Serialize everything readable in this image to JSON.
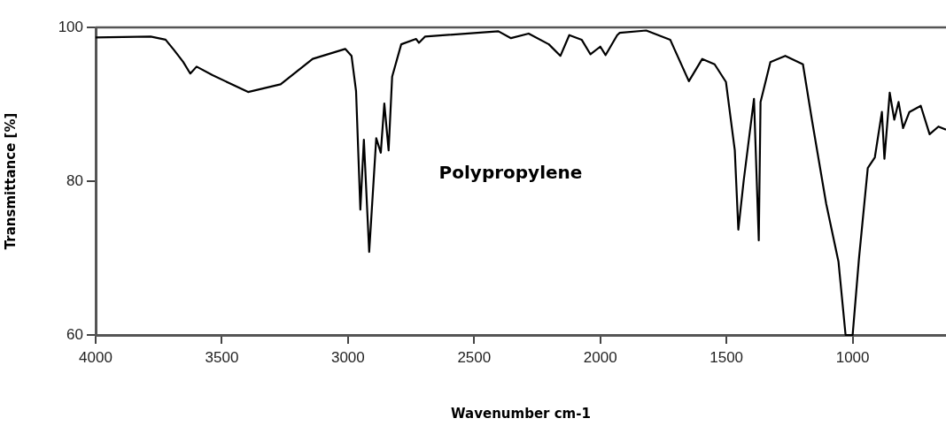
{
  "chart_data": {
    "type": "line",
    "xlabel": "Wavenumber cm-1",
    "ylabel": "Transmittance [%]",
    "annotations": [
      "Polypropylene"
    ],
    "xlim": [
      4000,
      630
    ],
    "xticks": [
      4000,
      3500,
      3000,
      2500,
      2000,
      1500,
      1000
    ],
    "ylim": [
      60,
      100
    ],
    "yticks": [
      60,
      80,
      100
    ],
    "grid": false,
    "legend": false,
    "marker": "none",
    "line_style": "solid",
    "ref_lines": [
      {
        "axis": "y",
        "value": 100,
        "color": "#555555"
      }
    ],
    "series": [
      {
        "color": "#000000",
        "x": [
          4000,
          3782,
          3723,
          3688,
          3653,
          3625,
          3600,
          3537,
          3396,
          3267,
          3140,
          3011,
          2986,
          2968,
          2951,
          2937,
          2916,
          2888,
          2870,
          2856,
          2839,
          2825,
          2789,
          2730,
          2719,
          2695,
          2404,
          2354,
          2284,
          2204,
          2158,
          2123,
          2074,
          2039,
          2000,
          1979,
          1933,
          1923,
          1818,
          1723,
          1649,
          1596,
          1547,
          1502,
          1467,
          1453,
          1432,
          1391,
          1372,
          1365,
          1326,
          1267,
          1197,
          1161,
          1105,
          1056,
          1028,
          1000,
          975,
          940,
          912,
          884,
          874,
          853,
          835,
          818,
          800,
          775,
          730,
          695,
          660,
          630
        ],
        "values": [
          98.7,
          98.8,
          98.4,
          97.0,
          95.5,
          94.0,
          94.9,
          93.8,
          91.6,
          92.6,
          95.9,
          97.2,
          96.3,
          91.7,
          76.3,
          85.4,
          70.8,
          85.6,
          83.7,
          90.1,
          84.0,
          93.6,
          97.8,
          98.5,
          98.0,
          98.8,
          99.5,
          98.6,
          99.2,
          97.8,
          96.3,
          99.0,
          98.4,
          96.5,
          97.5,
          96.4,
          99.0,
          99.3,
          99.6,
          98.4,
          93.0,
          95.9,
          95.2,
          92.9,
          84.0,
          73.7,
          80.0,
          90.7,
          72.3,
          90.3,
          95.5,
          96.3,
          95.2,
          87.9,
          77.1,
          69.5,
          60,
          60,
          69.9,
          81.7,
          83.1,
          89.0,
          82.9,
          91.5,
          88.0,
          90.3,
          86.9,
          89.0,
          89.8,
          86.1,
          87.1,
          86.7
        ]
      }
    ]
  }
}
